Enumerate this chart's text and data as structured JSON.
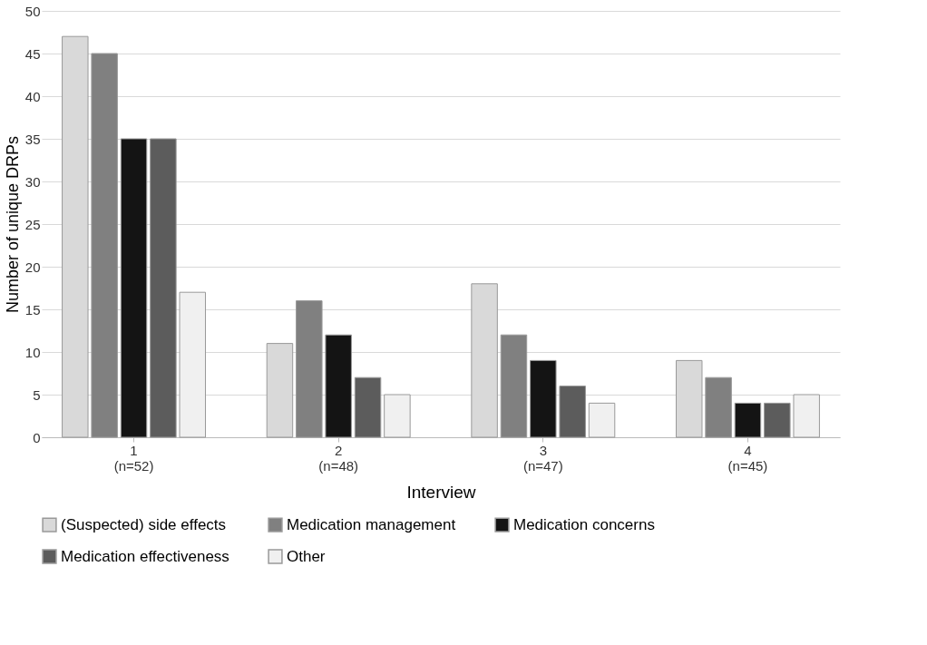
{
  "chart_data": {
    "type": "bar",
    "xlabel": "Interview",
    "ylabel": "Number of unique DRPs",
    "categories": [
      "1\n(n=52)",
      "2\n(n=48)",
      "3\n(n=47)",
      "4\n(n=45)"
    ],
    "series": [
      {
        "name": "(Suspected) side effects",
        "color": "#d9d9d9",
        "values": [
          47,
          11,
          18,
          9
        ]
      },
      {
        "name": "Medication management",
        "color": "#808080",
        "values": [
          45,
          16,
          12,
          7
        ]
      },
      {
        "name": "Medication concerns",
        "color": "#141414",
        "values": [
          35,
          12,
          9,
          4
        ]
      },
      {
        "name": "Medication effectiveness",
        "color": "#5c5c5c",
        "values": [
          35,
          7,
          6,
          4
        ]
      },
      {
        "name": "Other",
        "color": "#f0f0f0",
        "values": [
          17,
          5,
          4,
          5
        ]
      }
    ],
    "ylim": [
      0,
      50
    ],
    "yticks": [
      0,
      5,
      10,
      15,
      20,
      25,
      30,
      35,
      40,
      45,
      50
    ],
    "grid": "y",
    "legend": "bottom"
  }
}
